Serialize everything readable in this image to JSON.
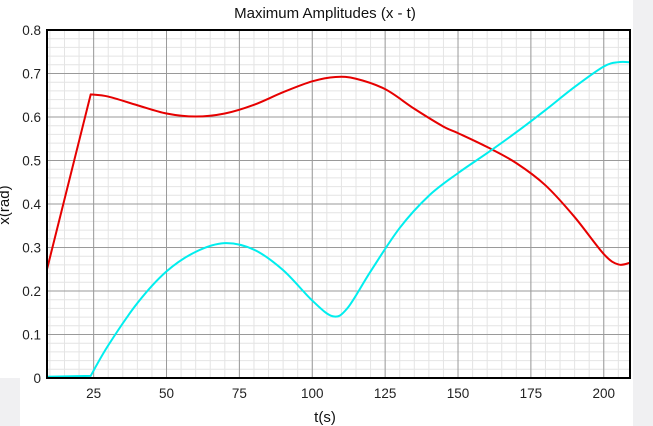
{
  "chart_data": {
    "type": "line",
    "title": "Maximum Amplitudes (x - t)",
    "xlabel": "t(s)",
    "ylabel": "x(rad)",
    "xlim": [
      9,
      209
    ],
    "ylim": [
      0,
      0.8
    ],
    "x_ticks": [
      25,
      50,
      75,
      100,
      125,
      150,
      175,
      200
    ],
    "y_ticks": [
      0,
      0.1,
      0.2,
      0.3,
      0.4,
      0.5,
      0.6,
      0.7,
      0.8
    ],
    "y_tick_labels": [
      "0",
      "0.1",
      "0.2",
      "0.3",
      "0.4",
      "0.5",
      "0.6",
      "0.7",
      "0.8"
    ],
    "grid": true,
    "legend": "none",
    "series": [
      {
        "color": "#e60000",
        "points": [
          [
            9,
            0.25
          ],
          [
            24,
            0.652
          ],
          [
            30,
            0.647
          ],
          [
            40,
            0.627
          ],
          [
            50,
            0.608
          ],
          [
            60,
            0.601
          ],
          [
            70,
            0.608
          ],
          [
            80,
            0.628
          ],
          [
            90,
            0.657
          ],
          [
            100,
            0.682
          ],
          [
            108,
            0.692
          ],
          [
            115,
            0.688
          ],
          [
            125,
            0.664
          ],
          [
            135,
            0.619
          ],
          [
            145,
            0.578
          ],
          [
            150,
            0.563
          ],
          [
            160,
            0.531
          ],
          [
            170,
            0.494
          ],
          [
            180,
            0.443
          ],
          [
            190,
            0.37
          ],
          [
            200,
            0.285
          ],
          [
            205,
            0.261
          ],
          [
            209,
            0.265
          ]
        ]
      },
      {
        "color": "#00eeee",
        "points": [
          [
            9,
            0.003
          ],
          [
            24,
            0.005
          ],
          [
            30,
            0.075
          ],
          [
            40,
            0.172
          ],
          [
            50,
            0.245
          ],
          [
            60,
            0.29
          ],
          [
            70,
            0.31
          ],
          [
            80,
            0.295
          ],
          [
            90,
            0.248
          ],
          [
            100,
            0.178
          ],
          [
            107,
            0.142
          ],
          [
            112,
            0.16
          ],
          [
            120,
            0.245
          ],
          [
            130,
            0.345
          ],
          [
            140,
            0.419
          ],
          [
            150,
            0.471
          ],
          [
            160,
            0.517
          ],
          [
            170,
            0.565
          ],
          [
            180,
            0.616
          ],
          [
            190,
            0.669
          ],
          [
            200,
            0.716
          ],
          [
            205,
            0.726
          ],
          [
            209,
            0.726
          ]
        ]
      }
    ]
  }
}
